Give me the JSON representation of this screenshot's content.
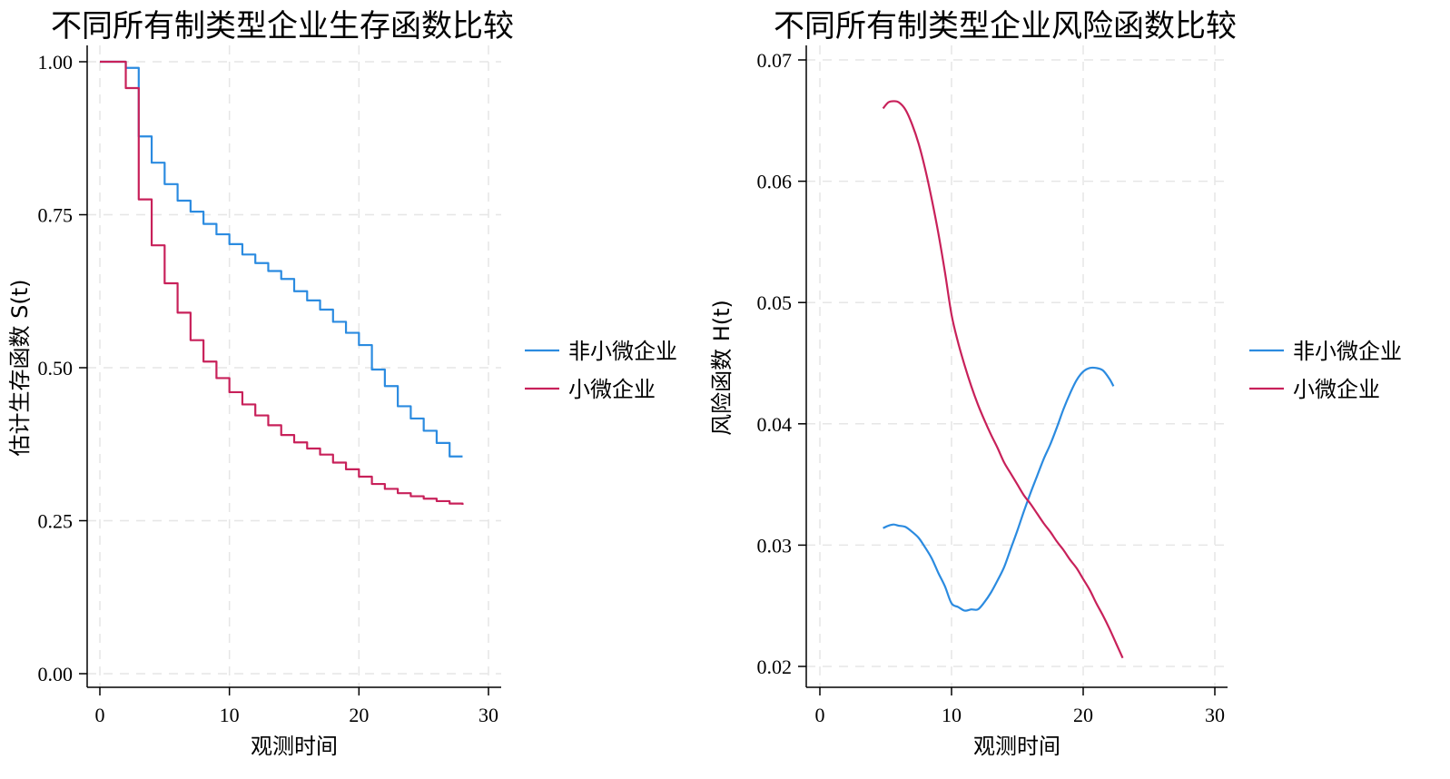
{
  "chart_data": [
    {
      "type": "line",
      "step": true,
      "title": "不同所有制类型企业生存函数比较",
      "xlabel": "观测时间",
      "ylabel": "估计生存函数 S(t)",
      "xlim": [
        0,
        30
      ],
      "ylim": [
        0,
        1
      ],
      "xticks": [
        "0",
        "10",
        "20",
        "30"
      ],
      "yticks": [
        "0.00",
        "0.25",
        "0.50",
        "0.75",
        "1.00"
      ],
      "xtick_values": [
        0,
        10,
        20,
        30
      ],
      "ytick_values": [
        0,
        0.25,
        0.5,
        0.75,
        1.0
      ],
      "grid": true,
      "legend_position": "right",
      "series": [
        {
          "name": "非小微企业",
          "color": "#2b8be0",
          "x": [
            0,
            1,
            2,
            3,
            4,
            5,
            6,
            7,
            8,
            9,
            10,
            11,
            12,
            13,
            14,
            15,
            16,
            17,
            18,
            19,
            20,
            21,
            22,
            23,
            24,
            25,
            26,
            27,
            28
          ],
          "y": [
            1.0,
            1.0,
            0.99,
            0.878,
            0.835,
            0.8,
            0.773,
            0.755,
            0.735,
            0.718,
            0.702,
            0.685,
            0.671,
            0.658,
            0.645,
            0.625,
            0.61,
            0.595,
            0.575,
            0.557,
            0.537,
            0.497,
            0.47,
            0.437,
            0.417,
            0.397,
            0.377,
            0.355,
            0.355
          ]
        },
        {
          "name": "小微企业",
          "color": "#c8215a",
          "x": [
            0,
            1,
            2,
            3,
            4,
            5,
            6,
            7,
            8,
            9,
            10,
            11,
            12,
            13,
            14,
            15,
            16,
            17,
            18,
            19,
            20,
            21,
            22,
            23,
            24,
            25,
            26,
            27,
            28
          ],
          "y": [
            1.0,
            1.0,
            0.957,
            0.775,
            0.7,
            0.638,
            0.59,
            0.545,
            0.51,
            0.483,
            0.46,
            0.44,
            0.422,
            0.406,
            0.39,
            0.378,
            0.368,
            0.358,
            0.345,
            0.334,
            0.322,
            0.31,
            0.302,
            0.295,
            0.29,
            0.286,
            0.282,
            0.278,
            0.276
          ]
        }
      ]
    },
    {
      "type": "line",
      "title": "不同所有制类型企业风险函数比较",
      "xlabel": "观测时间",
      "ylabel": "风险函数 H(t)",
      "xlim": [
        0,
        30
      ],
      "ylim": [
        0.019,
        0.071
      ],
      "xticks": [
        "0",
        "10",
        "20",
        "30"
      ],
      "yticks": [
        "0.02",
        "0.03",
        "0.04",
        "0.05",
        "0.06",
        "0.07"
      ],
      "xtick_values": [
        0,
        10,
        20,
        30
      ],
      "ytick_values": [
        0.02,
        0.03,
        0.04,
        0.05,
        0.06,
        0.07
      ],
      "grid": true,
      "legend_position": "right",
      "series": [
        {
          "name": "非小微企业",
          "color": "#2b8be0",
          "x": [
            4.8,
            5.2,
            5.6,
            6,
            6.5,
            7,
            7.5,
            8,
            8.5,
            9,
            9.5,
            10,
            10.5,
            11,
            11.5,
            12,
            12.5,
            13,
            13.5,
            14,
            14.5,
            15,
            15.5,
            16,
            16.5,
            17,
            17.5,
            18,
            18.5,
            19,
            19.5,
            20,
            20.5,
            21,
            21.5,
            22,
            22.3
          ],
          "y": [
            0.0314,
            0.0316,
            0.0317,
            0.0316,
            0.0315,
            0.0311,
            0.0306,
            0.0298,
            0.0289,
            0.0277,
            0.0266,
            0.0252,
            0.0249,
            0.0246,
            0.0247,
            0.0247,
            0.0253,
            0.0261,
            0.0271,
            0.0282,
            0.0297,
            0.0312,
            0.0328,
            0.0343,
            0.0357,
            0.0371,
            0.0383,
            0.0397,
            0.0412,
            0.0425,
            0.0436,
            0.0443,
            0.0446,
            0.0446,
            0.0444,
            0.0437,
            0.0431
          ]
        },
        {
          "name": "小微企业",
          "color": "#c8215a",
          "x": [
            4.8,
            5.2,
            5.6,
            6,
            6.5,
            7,
            7.5,
            8,
            8.5,
            9,
            9.5,
            10,
            10.5,
            11,
            11.5,
            12,
            12.5,
            13,
            13.5,
            14,
            14.5,
            15,
            15.5,
            16,
            16.5,
            17,
            17.5,
            18,
            18.5,
            19,
            19.5,
            20,
            20.5,
            21,
            21.5,
            22,
            22.5,
            23
          ],
          "y": [
            0.066,
            0.0665,
            0.0666,
            0.0665,
            0.0659,
            0.0647,
            0.0631,
            0.061,
            0.0585,
            0.0557,
            0.0525,
            0.049,
            0.0467,
            0.0448,
            0.0431,
            0.0416,
            0.0403,
            0.0391,
            0.038,
            0.0368,
            0.0359,
            0.035,
            0.0341,
            0.0334,
            0.0326,
            0.0318,
            0.0311,
            0.0303,
            0.0296,
            0.0288,
            0.0281,
            0.0272,
            0.0263,
            0.0252,
            0.0242,
            0.0231,
            0.0219,
            0.0207
          ]
        }
      ]
    }
  ]
}
